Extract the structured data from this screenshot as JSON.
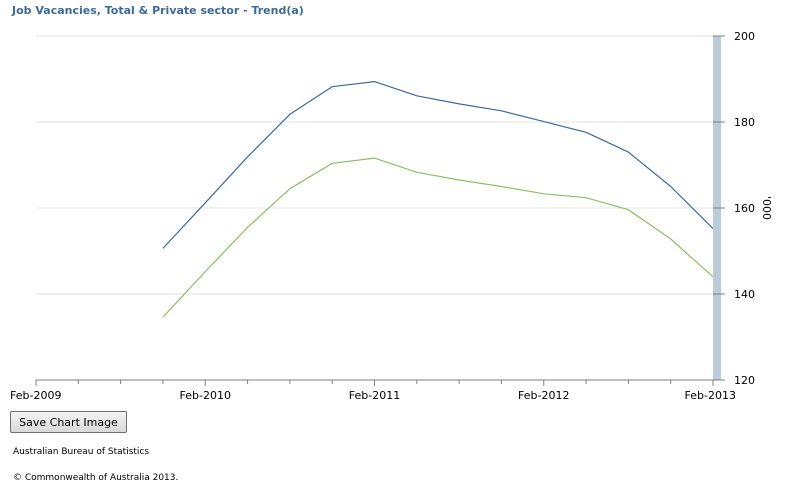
{
  "page": {
    "save_button_label": "Save Chart Image",
    "source": "Australian Bureau of Statistics",
    "copyright": "© Commonwealth of Australia 2013."
  },
  "chart_data": {
    "type": "line",
    "title": "Job Vacancies, Total & Private sector - Trend(a)",
    "xlabel": "",
    "ylabel": "'000",
    "x_ticks": [
      "Feb-2009",
      "Feb-2010",
      "Feb-2011",
      "Feb-2012",
      "Feb-2013"
    ],
    "x": [
      "Nov-2009",
      "Feb-2010",
      "May-2010",
      "Aug-2010",
      "Nov-2010",
      "Feb-2011",
      "May-2011",
      "Aug-2011",
      "Nov-2011",
      "Feb-2012",
      "May-2012",
      "Aug-2012",
      "Nov-2012",
      "Feb-2013"
    ],
    "y_ticks": [
      120,
      140,
      160,
      180,
      200
    ],
    "ylim": [
      120,
      200
    ],
    "y_axis_position": "right",
    "grid": true,
    "legend": "none",
    "series": [
      {
        "color": "#3d6a9c",
        "values": [
          150.6,
          161.2,
          171.9,
          181.8,
          188.2,
          189.4,
          186.1,
          184.2,
          182.6,
          180.1,
          177.6,
          173.0,
          165.0,
          155.2
        ]
      },
      {
        "color": "#8cc063",
        "values": [
          134.6,
          145.2,
          155.5,
          164.5,
          170.4,
          171.6,
          168.3,
          166.5,
          165.0,
          163.3,
          162.4,
          159.6,
          152.8,
          144.0
        ]
      }
    ]
  }
}
